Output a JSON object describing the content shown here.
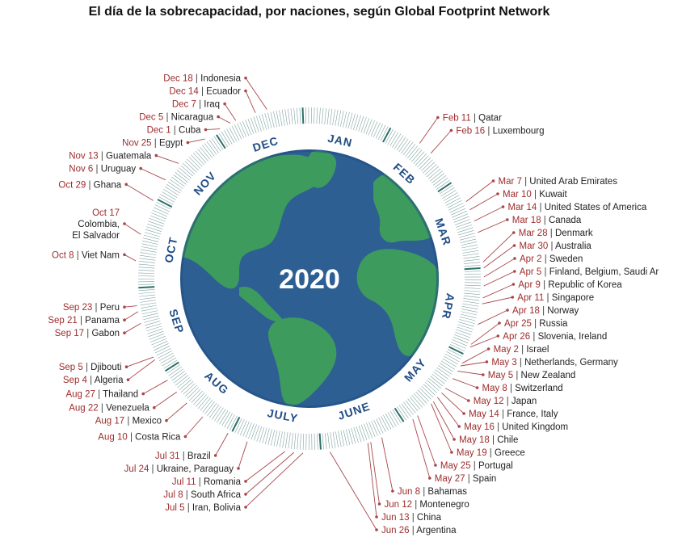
{
  "title": "El día de la sobrecapacidad, por naciones, según Global Footprint Network",
  "year": "2020",
  "colors": {
    "ocean": "#2e5f93",
    "ocean_dark": "#1f4d82",
    "land": "#3d9b5e",
    "land_light": "#6cbf6e",
    "month_text": "#214d86",
    "date_text": "#9e2b2b",
    "leader_line": "#a8474a",
    "tick": "#7fa3a0",
    "tick_dark": "#2b6f6a"
  },
  "months": [
    "JAN",
    "FEB",
    "MAR",
    "APR",
    "MAY",
    "JUNE",
    "JULY",
    "AUG",
    "SEP",
    "OCT",
    "NOV",
    "DEC"
  ],
  "entries": [
    {
      "date": "Feb 11",
      "name": "Qatar",
      "day": 42
    },
    {
      "date": "Feb 16",
      "name": "Luxembourg",
      "day": 47
    },
    {
      "date": "Mar 7",
      "name": "United Arab Emirates",
      "day": 67
    },
    {
      "date": "Mar 10",
      "name": "Kuwait",
      "day": 70
    },
    {
      "date": "Mar 14",
      "name": "United States of America",
      "day": 74
    },
    {
      "date": "Mar 18",
      "name": "Canada",
      "day": 78
    },
    {
      "date": "Mar 28",
      "name": "Denmark",
      "day": 88
    },
    {
      "date": "Mar 30",
      "name": "Australia",
      "day": 90
    },
    {
      "date": "Apr 2",
      "name": "Sweden",
      "day": 93
    },
    {
      "date": "Apr 5",
      "name": "Finland, Belgium, Saudi Ar",
      "day": 96
    },
    {
      "date": "Apr 9",
      "name": "Republic of Korea",
      "day": 100
    },
    {
      "date": "Apr 11",
      "name": "Singapore",
      "day": 102
    },
    {
      "date": "Apr 18",
      "name": "Norway",
      "day": 109
    },
    {
      "date": "Apr 25",
      "name": "Russia",
      "day": 116
    },
    {
      "date": "Apr 26",
      "name": "Slovenia, Ireland",
      "day": 117
    },
    {
      "date": "May 2",
      "name": "Israel",
      "day": 123
    },
    {
      "date": "May 3",
      "name": "Netherlands, Germany",
      "day": 124
    },
    {
      "date": "May 5",
      "name": "New Zealand",
      "day": 126
    },
    {
      "date": "May 8",
      "name": "Switzerland",
      "day": 129
    },
    {
      "date": "May 12",
      "name": "Japan",
      "day": 133
    },
    {
      "date": "May 14",
      "name": "France, Italy",
      "day": 135
    },
    {
      "date": "May 16",
      "name": "United Kingdom",
      "day": 137
    },
    {
      "date": "May 18",
      "name": "Chile",
      "day": 139
    },
    {
      "date": "May 19",
      "name": "Greece",
      "day": 140
    },
    {
      "date": "May 25",
      "name": "Portugal",
      "day": 146
    },
    {
      "date": "May 27",
      "name": "Spain",
      "day": 148
    },
    {
      "date": "Jun 8",
      "name": "Bahamas",
      "day": 160
    },
    {
      "date": "Jun 12",
      "name": "Montenegro",
      "day": 164
    },
    {
      "date": "Jun 13",
      "name": "China",
      "day": 165
    },
    {
      "date": "Jun 26",
      "name": "Argentina",
      "day": 178
    },
    {
      "date": "Jul 5",
      "name": "Iran, Bolivia",
      "day": 187
    },
    {
      "date": "Jul 8",
      "name": "South Africa",
      "day": 190
    },
    {
      "date": "Jul 11",
      "name": "Romania",
      "day": 193
    },
    {
      "date": "Jul 24",
      "name": "Ukraine, Paraguay",
      "day": 206
    },
    {
      "date": "Jul 31",
      "name": "Brazil",
      "day": 213
    },
    {
      "date": "Aug 10",
      "name": "Costa Rica",
      "day": 223
    },
    {
      "date": "Aug 17",
      "name": "Mexico",
      "day": 230
    },
    {
      "date": "Aug 22",
      "name": "Venezuela",
      "day": 235
    },
    {
      "date": "Aug 27",
      "name": "Thailand",
      "day": 240
    },
    {
      "date": "Sep  4",
      "name": "Algeria",
      "day": 248
    },
    {
      "date": "Sep  5",
      "name": "Djibouti",
      "day": 249
    },
    {
      "date": "Sep 17",
      "name": "Gabon",
      "day": 261
    },
    {
      "date": "Sep 21",
      "name": "Panama",
      "day": 265
    },
    {
      "date": "Sep 23",
      "name": "Peru",
      "day": 267
    },
    {
      "date": "Oct 8",
      "name": "Viet Nam",
      "day": 282
    },
    {
      "date": "Oct 17",
      "name": "Colombia,",
      "name2": "El Salvador",
      "day": 291
    },
    {
      "date": "Oct 29",
      "name": "Ghana",
      "day": 303
    },
    {
      "date": "Nov 6",
      "name": "Uruguay",
      "day": 311
    },
    {
      "date": "Nov 13",
      "name": "Guatemala",
      "day": 318
    },
    {
      "date": "Nov 25",
      "name": "Egypt",
      "day": 330
    },
    {
      "date": "Dec 1",
      "name": "Cuba",
      "day": 336
    },
    {
      "date": "Dec 5",
      "name": "Nicaragua",
      "day": 340
    },
    {
      "date": "Dec 7",
      "name": "Iraq",
      "day": 342
    },
    {
      "date": "Dec 14",
      "name": "Ecuador",
      "day": 349
    },
    {
      "date": "Dec 18",
      "name": "Indonesia",
      "day": 353
    }
  ]
}
